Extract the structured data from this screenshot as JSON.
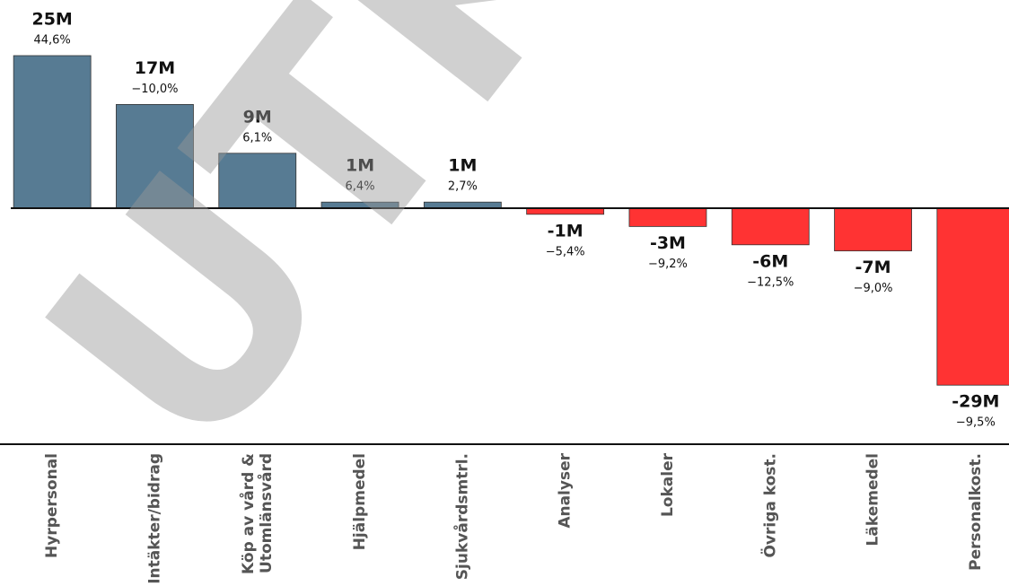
{
  "chart_data": {
    "type": "bar",
    "categories": [
      "Hyrpersonal",
      "Intäkter/bidrag",
      [
        "Köp av vård &",
        "Utomlänsvård"
      ],
      "Hjälpmedel",
      "Sjukvårdsmtrl.",
      "Analyser",
      "Lokaler",
      "Övriga kost.",
      "Läkemedel",
      "Personalkost."
    ],
    "values": [
      25,
      17,
      9,
      1,
      1,
      -1,
      -3,
      -6,
      -7,
      -29
    ],
    "value_labels": [
      "25M",
      "17M",
      "9M",
      "1M",
      "1M",
      "-1M",
      "-3M",
      "-6M",
      "-7M",
      "-29M"
    ],
    "change_labels": [
      "44,6%",
      "−10,0%",
      "6,1%",
      "6,4%",
      "2,7%",
      "−5,4%",
      "−9,2%",
      "−12,5%",
      "−9,0%",
      "−9,5%"
    ],
    "positive_color": "#577b93",
    "negative_color": "#ff3333",
    "watermark": "UTKAST"
  }
}
